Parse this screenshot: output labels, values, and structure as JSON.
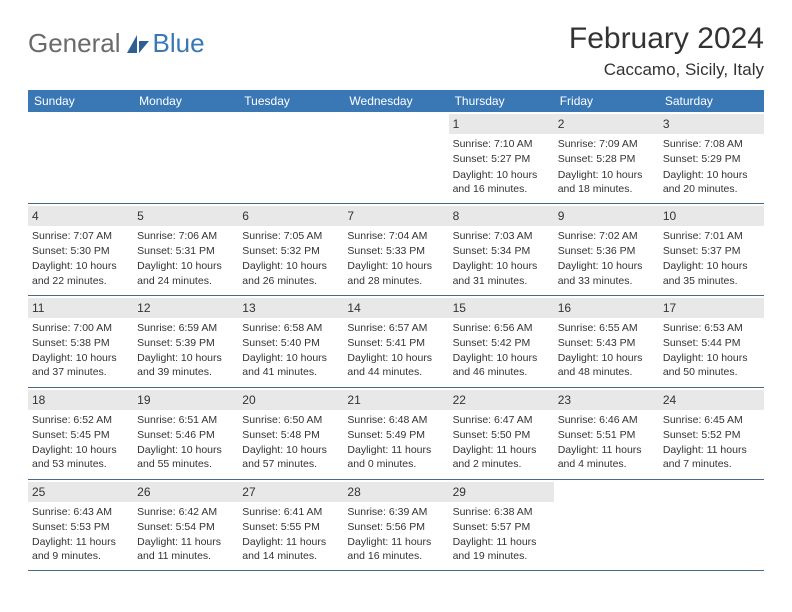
{
  "brand": {
    "part1": "General",
    "part2": "Blue"
  },
  "title": "February 2024",
  "location": "Caccamo, Sicily, Italy",
  "header_bg": "#3a78b5",
  "header_fg": "#ffffff",
  "daynum_bg": "#e8e8e8",
  "border_color": "#4a6a8a",
  "text_color": "#333333",
  "page_bg": "#ffffff",
  "font_family": "Arial, Helvetica, sans-serif",
  "title_fontsize": 30,
  "location_fontsize": 17,
  "header_fontsize": 12,
  "cell_fontsize": 10.5,
  "day_headers": [
    "Sunday",
    "Monday",
    "Tuesday",
    "Wednesday",
    "Thursday",
    "Friday",
    "Saturday"
  ],
  "weeks": [
    [
      {
        "n": "",
        "sunrise": "",
        "sunset": "",
        "daylight": ""
      },
      {
        "n": "",
        "sunrise": "",
        "sunset": "",
        "daylight": ""
      },
      {
        "n": "",
        "sunrise": "",
        "sunset": "",
        "daylight": ""
      },
      {
        "n": "",
        "sunrise": "",
        "sunset": "",
        "daylight": ""
      },
      {
        "n": "1",
        "sunrise": "Sunrise: 7:10 AM",
        "sunset": "Sunset: 5:27 PM",
        "daylight": "Daylight: 10 hours and 16 minutes."
      },
      {
        "n": "2",
        "sunrise": "Sunrise: 7:09 AM",
        "sunset": "Sunset: 5:28 PM",
        "daylight": "Daylight: 10 hours and 18 minutes."
      },
      {
        "n": "3",
        "sunrise": "Sunrise: 7:08 AM",
        "sunset": "Sunset: 5:29 PM",
        "daylight": "Daylight: 10 hours and 20 minutes."
      }
    ],
    [
      {
        "n": "4",
        "sunrise": "Sunrise: 7:07 AM",
        "sunset": "Sunset: 5:30 PM",
        "daylight": "Daylight: 10 hours and 22 minutes."
      },
      {
        "n": "5",
        "sunrise": "Sunrise: 7:06 AM",
        "sunset": "Sunset: 5:31 PM",
        "daylight": "Daylight: 10 hours and 24 minutes."
      },
      {
        "n": "6",
        "sunrise": "Sunrise: 7:05 AM",
        "sunset": "Sunset: 5:32 PM",
        "daylight": "Daylight: 10 hours and 26 minutes."
      },
      {
        "n": "7",
        "sunrise": "Sunrise: 7:04 AM",
        "sunset": "Sunset: 5:33 PM",
        "daylight": "Daylight: 10 hours and 28 minutes."
      },
      {
        "n": "8",
        "sunrise": "Sunrise: 7:03 AM",
        "sunset": "Sunset: 5:34 PM",
        "daylight": "Daylight: 10 hours and 31 minutes."
      },
      {
        "n": "9",
        "sunrise": "Sunrise: 7:02 AM",
        "sunset": "Sunset: 5:36 PM",
        "daylight": "Daylight: 10 hours and 33 minutes."
      },
      {
        "n": "10",
        "sunrise": "Sunrise: 7:01 AM",
        "sunset": "Sunset: 5:37 PM",
        "daylight": "Daylight: 10 hours and 35 minutes."
      }
    ],
    [
      {
        "n": "11",
        "sunrise": "Sunrise: 7:00 AM",
        "sunset": "Sunset: 5:38 PM",
        "daylight": "Daylight: 10 hours and 37 minutes."
      },
      {
        "n": "12",
        "sunrise": "Sunrise: 6:59 AM",
        "sunset": "Sunset: 5:39 PM",
        "daylight": "Daylight: 10 hours and 39 minutes."
      },
      {
        "n": "13",
        "sunrise": "Sunrise: 6:58 AM",
        "sunset": "Sunset: 5:40 PM",
        "daylight": "Daylight: 10 hours and 41 minutes."
      },
      {
        "n": "14",
        "sunrise": "Sunrise: 6:57 AM",
        "sunset": "Sunset: 5:41 PM",
        "daylight": "Daylight: 10 hours and 44 minutes."
      },
      {
        "n": "15",
        "sunrise": "Sunrise: 6:56 AM",
        "sunset": "Sunset: 5:42 PM",
        "daylight": "Daylight: 10 hours and 46 minutes."
      },
      {
        "n": "16",
        "sunrise": "Sunrise: 6:55 AM",
        "sunset": "Sunset: 5:43 PM",
        "daylight": "Daylight: 10 hours and 48 minutes."
      },
      {
        "n": "17",
        "sunrise": "Sunrise: 6:53 AM",
        "sunset": "Sunset: 5:44 PM",
        "daylight": "Daylight: 10 hours and 50 minutes."
      }
    ],
    [
      {
        "n": "18",
        "sunrise": "Sunrise: 6:52 AM",
        "sunset": "Sunset: 5:45 PM",
        "daylight": "Daylight: 10 hours and 53 minutes."
      },
      {
        "n": "19",
        "sunrise": "Sunrise: 6:51 AM",
        "sunset": "Sunset: 5:46 PM",
        "daylight": "Daylight: 10 hours and 55 minutes."
      },
      {
        "n": "20",
        "sunrise": "Sunrise: 6:50 AM",
        "sunset": "Sunset: 5:48 PM",
        "daylight": "Daylight: 10 hours and 57 minutes."
      },
      {
        "n": "21",
        "sunrise": "Sunrise: 6:48 AM",
        "sunset": "Sunset: 5:49 PM",
        "daylight": "Daylight: 11 hours and 0 minutes."
      },
      {
        "n": "22",
        "sunrise": "Sunrise: 6:47 AM",
        "sunset": "Sunset: 5:50 PM",
        "daylight": "Daylight: 11 hours and 2 minutes."
      },
      {
        "n": "23",
        "sunrise": "Sunrise: 6:46 AM",
        "sunset": "Sunset: 5:51 PM",
        "daylight": "Daylight: 11 hours and 4 minutes."
      },
      {
        "n": "24",
        "sunrise": "Sunrise: 6:45 AM",
        "sunset": "Sunset: 5:52 PM",
        "daylight": "Daylight: 11 hours and 7 minutes."
      }
    ],
    [
      {
        "n": "25",
        "sunrise": "Sunrise: 6:43 AM",
        "sunset": "Sunset: 5:53 PM",
        "daylight": "Daylight: 11 hours and 9 minutes."
      },
      {
        "n": "26",
        "sunrise": "Sunrise: 6:42 AM",
        "sunset": "Sunset: 5:54 PM",
        "daylight": "Daylight: 11 hours and 11 minutes."
      },
      {
        "n": "27",
        "sunrise": "Sunrise: 6:41 AM",
        "sunset": "Sunset: 5:55 PM",
        "daylight": "Daylight: 11 hours and 14 minutes."
      },
      {
        "n": "28",
        "sunrise": "Sunrise: 6:39 AM",
        "sunset": "Sunset: 5:56 PM",
        "daylight": "Daylight: 11 hours and 16 minutes."
      },
      {
        "n": "29",
        "sunrise": "Sunrise: 6:38 AM",
        "sunset": "Sunset: 5:57 PM",
        "daylight": "Daylight: 11 hours and 19 minutes."
      },
      {
        "n": "",
        "sunrise": "",
        "sunset": "",
        "daylight": ""
      },
      {
        "n": "",
        "sunrise": "",
        "sunset": "",
        "daylight": ""
      }
    ]
  ]
}
